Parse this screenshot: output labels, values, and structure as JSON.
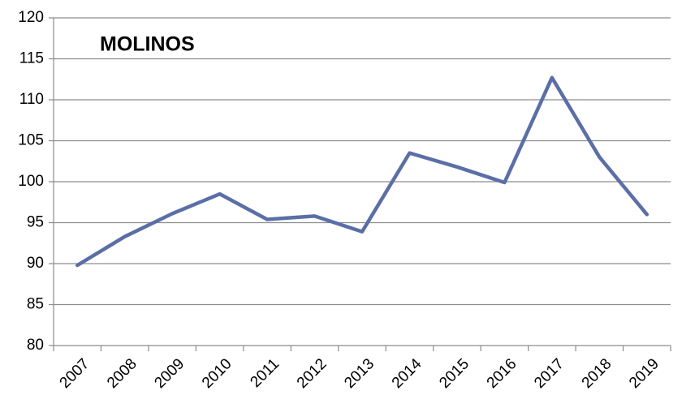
{
  "chart_data": {
    "type": "line",
    "title": "MOLINOS",
    "categories": [
      "2007",
      "2008",
      "2009",
      "2010",
      "2011",
      "2012",
      "2013",
      "2014",
      "2015",
      "2016",
      "2017",
      "2018",
      "2019"
    ],
    "values": [
      89.8,
      93.3,
      96.1,
      98.5,
      95.4,
      95.8,
      93.9,
      103.5,
      101.8,
      99.9,
      112.7,
      103.0,
      96.0
    ],
    "color": "#5b6fa6",
    "ylim": [
      80,
      120
    ],
    "yticks": [
      80,
      85,
      90,
      95,
      100,
      105,
      110,
      115,
      120
    ],
    "grid": true
  }
}
